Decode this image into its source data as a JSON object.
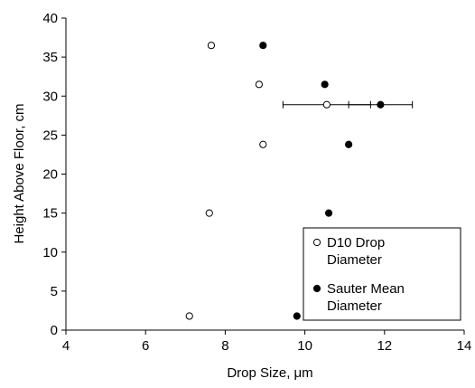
{
  "chart_data": {
    "type": "scatter",
    "xlabel": "Drop Size, μm",
    "ylabel": "Height Above Floor, cm",
    "xlim": [
      4,
      14
    ],
    "ylim": [
      0,
      40
    ],
    "xticks": [
      4,
      6,
      8,
      10,
      12,
      14
    ],
    "yticks": [
      0,
      5,
      10,
      15,
      20,
      25,
      30,
      35,
      40
    ],
    "grid": false,
    "legend_position": "bottom-right",
    "series": [
      {
        "name": "D10 Drop Diameter",
        "legend_lines": [
          "D10 Drop",
          "Diameter"
        ],
        "marker": "open-circle",
        "color": "#000000",
        "points": [
          {
            "x": 7.65,
            "y": 36.5
          },
          {
            "x": 8.85,
            "y": 31.5
          },
          {
            "x": 10.55,
            "y": 28.9,
            "xerr_low": 9.45,
            "xerr_high": 11.65
          },
          {
            "x": 8.95,
            "y": 23.8
          },
          {
            "x": 7.6,
            "y": 15.0
          },
          {
            "x": 7.1,
            "y": 1.8
          }
        ]
      },
      {
        "name": "Sauter Mean Diameter",
        "legend_lines": [
          "Sauter Mean",
          "Diameter"
        ],
        "marker": "filled-circle",
        "color": "#000000",
        "points": [
          {
            "x": 8.95,
            "y": 36.5
          },
          {
            "x": 10.5,
            "y": 31.5
          },
          {
            "x": 11.9,
            "y": 28.9,
            "xerr_low": 11.1,
            "xerr_high": 12.7
          },
          {
            "x": 11.1,
            "y": 23.8
          },
          {
            "x": 10.6,
            "y": 15.0
          },
          {
            "x": 9.8,
            "y": 1.8
          }
        ]
      }
    ]
  }
}
